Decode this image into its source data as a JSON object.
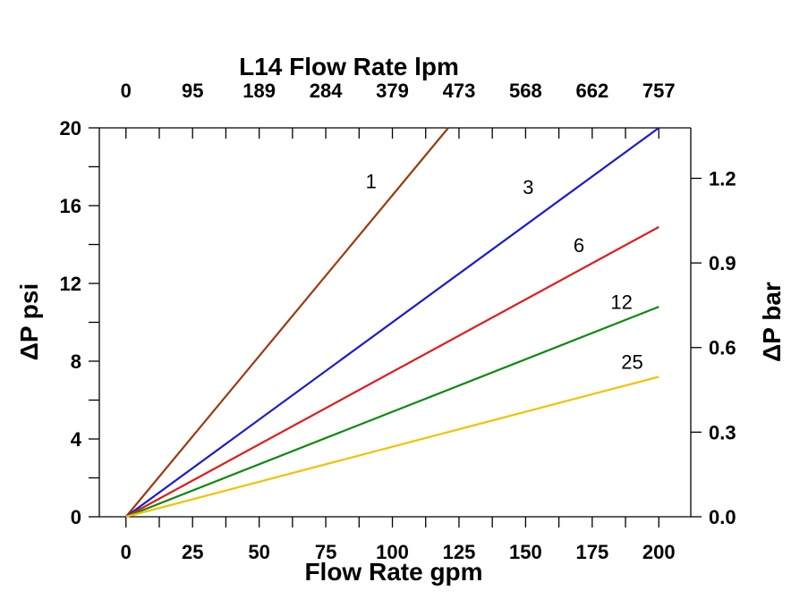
{
  "chart_data": {
    "type": "line",
    "top_title": "L14  Flow Rate lpm",
    "xlabel": "Flow Rate gpm",
    "ylabel": "ΔP psi",
    "y2label": "ΔP bar",
    "xlim": [
      -10,
      212
    ],
    "ylim": [
      0,
      20
    ],
    "y2lim": [
      0,
      1.379
    ],
    "grid": false,
    "x_ticks": [
      0,
      25,
      50,
      75,
      100,
      125,
      150,
      175,
      200
    ],
    "top_tick_values": [
      0,
      25,
      50,
      75,
      100,
      125,
      150,
      175,
      200
    ],
    "top_tick_labels": [
      "0",
      "95",
      "189",
      "284",
      "379",
      "473",
      "568",
      "662",
      "757"
    ],
    "y_ticks": [
      0,
      4,
      8,
      12,
      16,
      20
    ],
    "y2_ticks": [
      0.0,
      0.3,
      0.6,
      0.9,
      1.2
    ],
    "y2_tick_labels": [
      "0.0",
      "0.3",
      "0.6",
      "0.9",
      "1.2"
    ],
    "series": [
      {
        "name": "1",
        "color": "#9B3A0E",
        "x": [
          0,
          121
        ],
        "y": [
          0,
          20
        ],
        "label_at": [
          92,
          16.9
        ]
      },
      {
        "name": "3",
        "color": "#1A1AD0",
        "x": [
          0,
          200
        ],
        "y": [
          0,
          20
        ],
        "label_at": [
          151,
          16.6
        ]
      },
      {
        "name": "6",
        "color": "#E01B1B",
        "x": [
          0,
          200
        ],
        "y": [
          0,
          14.9
        ],
        "label_at": [
          170,
          13.6
        ]
      },
      {
        "name": "12",
        "color": "#0A8A0A",
        "x": [
          0,
          200
        ],
        "y": [
          0,
          10.8
        ],
        "label_at": [
          186,
          10.7
        ]
      },
      {
        "name": "25",
        "color": "#F2C200",
        "x": [
          0,
          200
        ],
        "y": [
          0,
          7.2
        ],
        "label_at": [
          190,
          7.6
        ]
      }
    ]
  }
}
